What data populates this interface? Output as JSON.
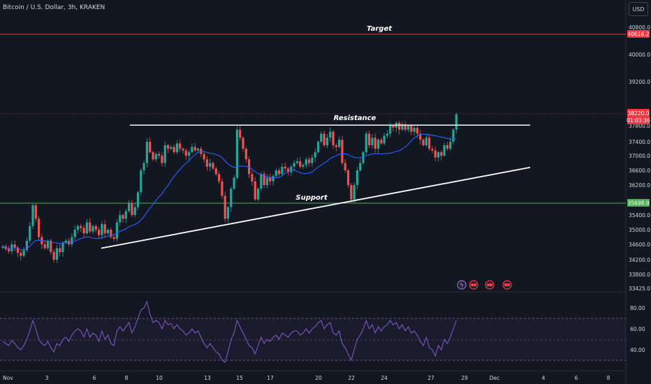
{
  "header": {
    "symbol": "Bitcoin / U.S. Dollar, 3h, KRAKEN",
    "currency_button": "USD"
  },
  "chart_data": [
    {
      "type": "candlestick",
      "title": "",
      "x_ticks": [
        "Nov",
        "3",
        "6",
        "8",
        "10",
        "13",
        "15",
        "17",
        "20",
        "22",
        "24",
        "27",
        "29",
        "Dec",
        "4",
        "6",
        "8"
      ],
      "y_ticks": [
        33425.0,
        33800.0,
        34200.0,
        34600.0,
        35000.0,
        35400.0,
        36200.0,
        36600.0,
        37000.0,
        37400.0,
        37800.0,
        39200.0,
        40000.0,
        40800.0
      ],
      "ylim": [
        33425,
        41000
      ],
      "price_labels": {
        "target": "40616.2",
        "support": "35698.9",
        "current": "38220.0",
        "countdown": "01:03:36"
      },
      "levels": {
        "target": 40616.2,
        "support": 35698.9,
        "current": 38220.0
      },
      "annotations": {
        "target_label": "Target",
        "resistance_label": "Resistance",
        "support_label": "Support"
      },
      "resistance_line": {
        "start": "Nov 9",
        "end": "Dec 1",
        "price": 37820
      },
      "support_trendline": {
        "start": [
          "Nov 6",
          34500
        ],
        "end": [
          "Dec 1",
          36680
        ]
      },
      "candles_close": [
        34550,
        34480,
        34420,
        34600,
        34520,
        34380,
        34300,
        34450,
        34700,
        35100,
        35650,
        35300,
        34800,
        34600,
        34500,
        34700,
        34400,
        34200,
        34500,
        34400,
        34650,
        34700,
        34600,
        34800,
        35000,
        35100,
        35050,
        34900,
        35200,
        34950,
        35100,
        35000,
        34850,
        35150,
        34900,
        35000,
        34800,
        34750,
        35200,
        35400,
        35300,
        35500,
        35700,
        35400,
        35600,
        36000,
        36600,
        36800,
        37400,
        37100,
        36900,
        37050,
        37000,
        36800,
        37300,
        37200,
        37250,
        37100,
        37350,
        37200,
        37150,
        37000,
        37100,
        37250,
        37150,
        37200,
        37050,
        36900,
        36700,
        36800,
        36650,
        36500,
        36300,
        35900,
        35300,
        35600,
        36100,
        36400,
        37700,
        37500,
        37200,
        36900,
        36500,
        36300,
        35800,
        36100,
        36500,
        36200,
        36400,
        36300,
        36450,
        36600,
        36500,
        36700,
        36650,
        36550,
        36700,
        36800,
        36850,
        36700,
        36750,
        36900,
        36800,
        36950,
        37100,
        37400,
        37600,
        37300,
        37500,
        37650,
        37300,
        37250,
        37450,
        36800,
        36600,
        36200,
        35800,
        36200,
        36600,
        36800,
        37100,
        37600,
        37300,
        37500,
        37200,
        37450,
        37350,
        37550,
        37600,
        37800,
        37750,
        37900,
        37700,
        37850,
        37700,
        37800,
        37650,
        37750,
        37600,
        37450,
        37300,
        37500,
        37200,
        37150,
        36950,
        37100,
        37000,
        37300,
        37200,
        37400,
        37700,
        38200
      ],
      "moving_average": {
        "period": 20,
        "color": "#2962ff"
      },
      "events_note": "event markers near x 660-725"
    },
    {
      "type": "line",
      "title": "",
      "y_ticks": [
        80.0,
        60.0,
        40.0
      ],
      "ylim": [
        28,
        92
      ],
      "bands": {
        "upper": 70,
        "middle": 50,
        "lower": 30
      },
      "series": [
        {
          "values": [
            48,
            46,
            44,
            49,
            46,
            42,
            40,
            44,
            50,
            58,
            68,
            60,
            50,
            46,
            44,
            48,
            42,
            38,
            46,
            44,
            50,
            52,
            48,
            54,
            58,
            60,
            58,
            52,
            60,
            52,
            56,
            54,
            48,
            58,
            50,
            54,
            46,
            44,
            58,
            62,
            58,
            62,
            66,
            56,
            62,
            70,
            78,
            80,
            86,
            74,
            66,
            68,
            66,
            60,
            68,
            64,
            65,
            60,
            64,
            60,
            58,
            54,
            56,
            60,
            56,
            58,
            52,
            46,
            42,
            46,
            42,
            38,
            36,
            30,
            28,
            38,
            50,
            56,
            68,
            62,
            56,
            50,
            44,
            42,
            36,
            44,
            52,
            46,
            50,
            48,
            52,
            54,
            50,
            56,
            54,
            52,
            56,
            58,
            58,
            54,
            56,
            60,
            56,
            60,
            62,
            66,
            68,
            60,
            64,
            66,
            56,
            54,
            58,
            46,
            42,
            36,
            30,
            40,
            50,
            54,
            60,
            68,
            60,
            64,
            56,
            62,
            58,
            62,
            64,
            68,
            64,
            66,
            60,
            64,
            58,
            62,
            56,
            58,
            54,
            48,
            44,
            52,
            42,
            40,
            34,
            44,
            40,
            50,
            46,
            52,
            60,
            68
          ]
        }
      ]
    }
  ]
}
